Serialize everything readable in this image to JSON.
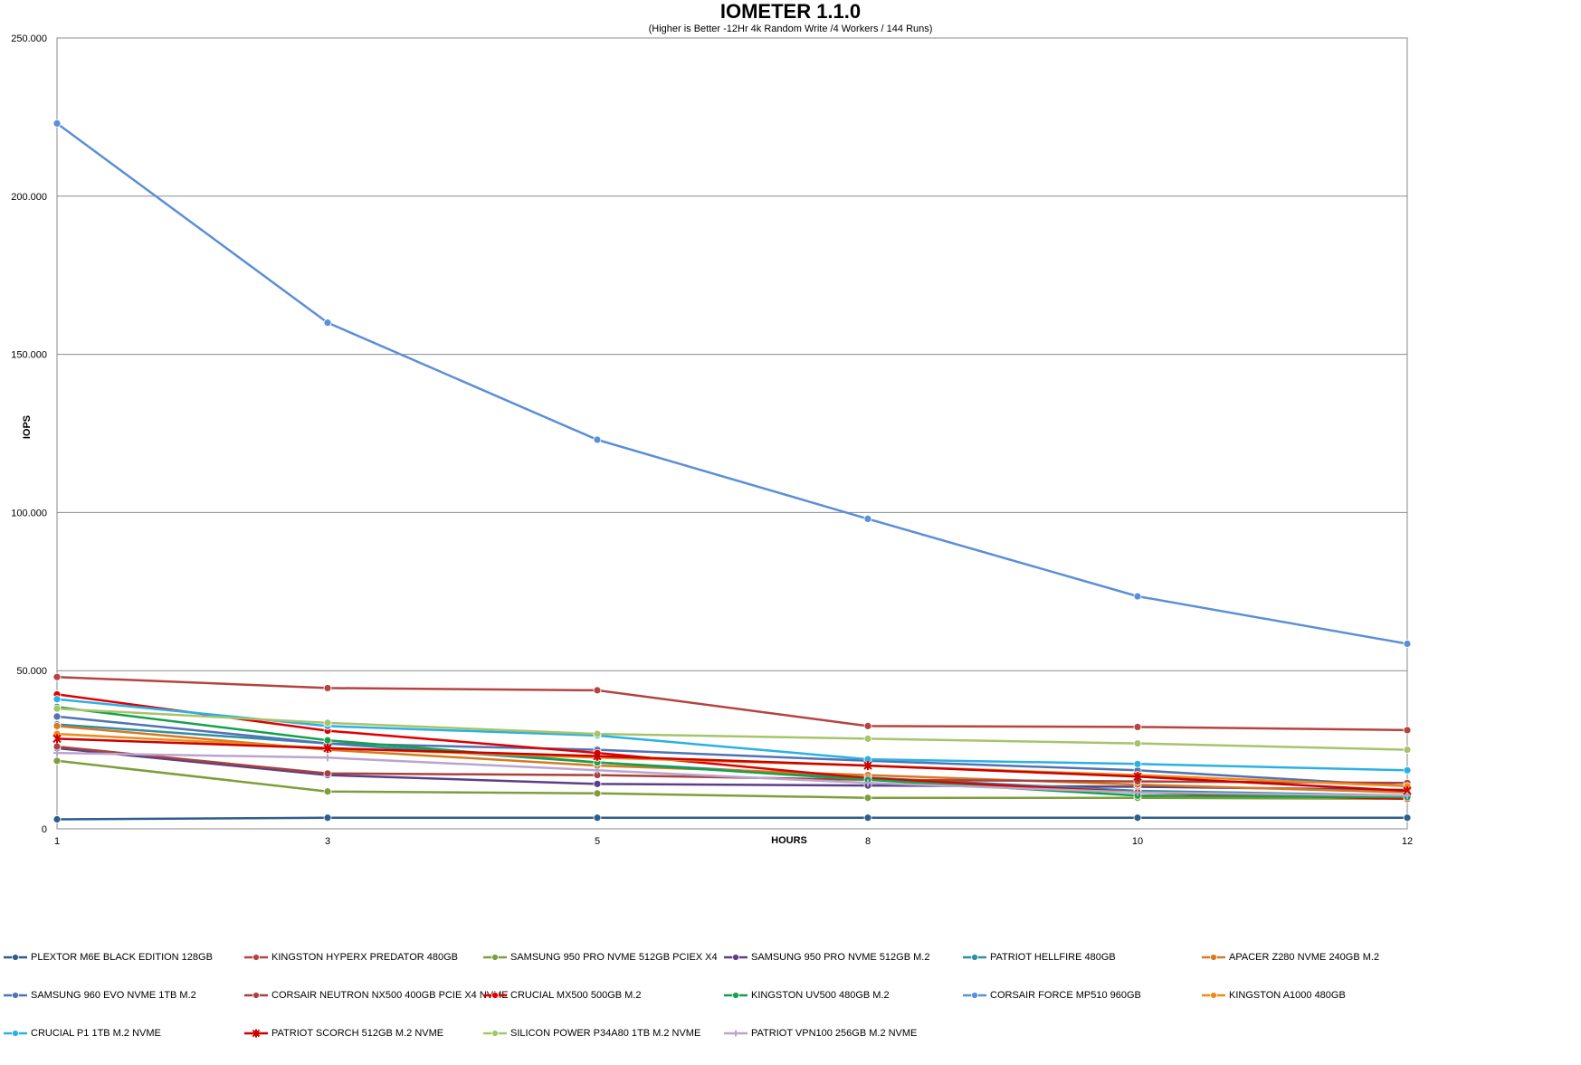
{
  "chart_data": {
    "type": "line",
    "title": "IOMETER 1.1.0",
    "subtitle": "(Higher is Better -12Hr 4k Random Write /4 Workers / 144 Runs)",
    "xlabel": "HOURS",
    "ylabel": "IOPS",
    "x": [
      "1",
      "3",
      "5",
      "8",
      "10",
      "12"
    ],
    "ylim": [
      0,
      250000
    ],
    "yticks": [
      0,
      50000,
      100000,
      150000,
      200000,
      250000
    ],
    "ytick_labels": [
      "0",
      "50.000",
      "100.000",
      "150.000",
      "200.000",
      "250.000"
    ],
    "grid": true,
    "legend_position": "bottom",
    "series": [
      {
        "name": "PLEXTOR M6E BLACK EDITION 128GB",
        "color": "#2e5d8e",
        "marker": "circle",
        "values": [
          3000,
          3500,
          3500,
          3500,
          3500,
          3500
        ]
      },
      {
        "name": "KINGSTON HYPERX PREDATOR 480GB",
        "color": "#b5433f",
        "marker": "circle",
        "values": [
          48000,
          44500,
          43800,
          32500,
          32200,
          31200
        ]
      },
      {
        "name": "SAMSUNG 950 PRO NVME 512GB PCIEX X4",
        "color": "#7d9f3a",
        "marker": "circle",
        "values": [
          21500,
          11800,
          11200,
          9800,
          9800,
          9500
        ]
      },
      {
        "name": "SAMSUNG 950 PRO NVME 512GB M.2",
        "color": "#5b3f87",
        "marker": "circle",
        "values": [
          25500,
          17000,
          14200,
          13700,
          13300,
          12300
        ]
      },
      {
        "name": "PATRIOT HELLFIRE 480GB",
        "color": "#2e8fa6",
        "marker": "circle",
        "values": [
          33000,
          27000,
          21000,
          16200,
          12000,
          10500
        ]
      },
      {
        "name": "APACER Z280 NVME 240GB M.2",
        "color": "#d67a1f",
        "marker": "circle",
        "values": [
          32500,
          25000,
          20000,
          17000,
          14000,
          11500
        ]
      },
      {
        "name": "SAMSUNG 960 EVO NVME 1TB M.2",
        "color": "#4f73b5",
        "marker": "circle",
        "values": [
          35500,
          27000,
          25000,
          21500,
          18500,
          13500
        ]
      },
      {
        "name": "CORSAIR NEUTRON NX500 400GB PCIE X4 NVME",
        "color": "#a8423f",
        "marker": "circle",
        "values": [
          26000,
          17500,
          17000,
          15500,
          15000,
          14500
        ]
      },
      {
        "name": "CRUCIAL MX500 500GB M.2",
        "color": "#e00000",
        "marker": "circle",
        "values": [
          42500,
          31000,
          24000,
          16000,
          11500,
          9500
        ]
      },
      {
        "name": "KINGSTON UV500 480GB M.2",
        "color": "#17a04a",
        "marker": "circle",
        "values": [
          38500,
          28000,
          21000,
          15500,
          10500,
          10000
        ]
      },
      {
        "name": "CORSAIR FORCE MP510 960GB",
        "color": "#5b8fd6",
        "marker": "circle",
        "values": [
          223000,
          160000,
          123000,
          98000,
          73500,
          58500
        ]
      },
      {
        "name": "KINGSTON A1000 480GB",
        "color": "#ef8a17",
        "marker": "circle",
        "values": [
          30000,
          25500,
          22500,
          20000,
          17000,
          13500
        ]
      },
      {
        "name": "CRUCIAL P1 1TB M.2 NVME",
        "color": "#2ab1e3",
        "marker": "circle",
        "values": [
          41000,
          32500,
          29500,
          22000,
          20500,
          18500
        ]
      },
      {
        "name": "PATRIOT SCORCH 512GB M.2 NVME",
        "color": "#cc0000",
        "marker": "star",
        "values": [
          28500,
          25500,
          23000,
          20000,
          16500,
          12000
        ]
      },
      {
        "name": "SILICON POWER P34A80 1TB M.2 NVME",
        "color": "#a6c46a",
        "marker": "circle",
        "values": [
          38000,
          33500,
          30000,
          28500,
          27000,
          25000
        ]
      },
      {
        "name": "PATRIOT VPN100 256GB M.2 NVME",
        "color": "#b9a5cf",
        "marker": "plus",
        "values": [
          24000,
          22500,
          18500,
          14500,
          11500,
          10500
        ]
      }
    ]
  }
}
